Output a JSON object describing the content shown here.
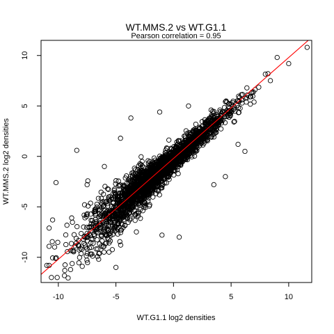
{
  "chart_data": {
    "type": "scatter",
    "title": "WT.MMS.2 vs WT.G1.1",
    "subtitle": "Pearson correlation =  0.95",
    "xlabel": "WT.G1.1 log2 densities",
    "ylabel": "WT.MMS.2 log2 densities",
    "xlim": [
      -11.5,
      12
    ],
    "ylim": [
      -12.5,
      11.5
    ],
    "x_ticks": [
      -10,
      -5,
      0,
      5,
      10
    ],
    "y_ticks": [
      -10,
      -5,
      0,
      5,
      10
    ],
    "x_tick_labels": [
      "-10",
      "-5",
      "0",
      "5",
      "10"
    ],
    "y_tick_labels": [
      "-10",
      "-5",
      "0",
      "5",
      "10"
    ],
    "pearson_correlation": 0.95,
    "point_count_approx": 2600,
    "marker": "open-circle",
    "point_color": "#000000",
    "fit_line": {
      "slope": 1.0,
      "intercept": -0.2,
      "color": "#ff0000"
    },
    "outlier_points": [
      {
        "x": -10.6,
        "y": -12.0
      },
      {
        "x": -10.1,
        "y": -12.0
      },
      {
        "x": -10.2,
        "y": -2.6
      },
      {
        "x": -10.5,
        "y": -6.3
      },
      {
        "x": -11.0,
        "y": -10.8
      },
      {
        "x": -8.4,
        "y": 0.6
      },
      {
        "x": -7.5,
        "y": -2.8
      },
      {
        "x": -6.0,
        "y": -1.0
      },
      {
        "x": -4.6,
        "y": 1.8
      },
      {
        "x": -3.7,
        "y": 3.8
      },
      {
        "x": -1.2,
        "y": 4.4
      },
      {
        "x": 1.3,
        "y": 5.0
      },
      {
        "x": 3.5,
        "y": -2.8
      },
      {
        "x": 6.2,
        "y": 0.5
      },
      {
        "x": 5.6,
        "y": 1.2
      },
      {
        "x": 10.0,
        "y": 9.2
      },
      {
        "x": 11.6,
        "y": 10.8
      },
      {
        "x": 9.0,
        "y": 9.8
      },
      {
        "x": 8.2,
        "y": 8.2
      },
      {
        "x": 4.5,
        "y": -2.0
      },
      {
        "x": -1.0,
        "y": -7.8
      },
      {
        "x": 0.5,
        "y": -8.0
      },
      {
        "x": -5.0,
        "y": -11.0
      },
      {
        "x": -6.5,
        "y": -10.2
      }
    ]
  }
}
